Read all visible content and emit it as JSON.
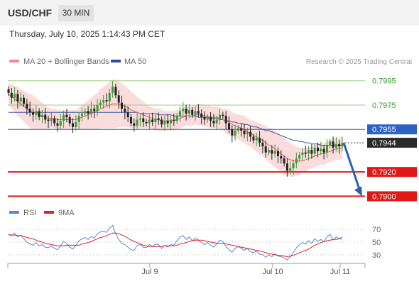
{
  "header": {
    "symbol": "USD/CHF",
    "timeframe": "30 MIN",
    "datetime": "Thursday, July 10, 2025 1:14:43 PM CET"
  },
  "legend": {
    "items": [
      {
        "name": "MA 20 + Bollinger Bands",
        "color": "#f08a8a"
      },
      {
        "name": "MA 50",
        "color": "#2a4f9a"
      }
    ],
    "credit": "Research © 2025 Trading Central"
  },
  "colors": {
    "up": "#3a9a3a",
    "down": "#222222",
    "resistance": "#9bd07a",
    "pivot": "#2a63c4",
    "support": "#e01818",
    "band_fill": "#fbdcdc",
    "ma20": "#e86060",
    "ma50": "#3a5ba0",
    "rsi": "#5b86d6",
    "rsi_ma": "#e02020",
    "arrow": "#2b5fb0"
  },
  "chart_data": [
    {
      "type": "candlestick",
      "ylim": [
        0.7895,
        0.8003
      ],
      "x_ticks": [
        "Jul 9",
        "Jul 10",
        "Jul 11"
      ],
      "levels": [
        {
          "value": 0.7995,
          "label": "0.7995",
          "role": "resistance"
        },
        {
          "value": 0.7975,
          "label": "0.7975",
          "role": "resistance"
        },
        {
          "value": 0.7955,
          "label": "0.7955",
          "role": "pivot"
        },
        {
          "value": 0.7944,
          "label": "0.7944",
          "role": "last"
        },
        {
          "value": 0.792,
          "label": "0.7920",
          "role": "support"
        },
        {
          "value": 0.79,
          "label": "0.7900",
          "role": "support"
        }
      ],
      "close": [
        0.7985,
        0.7981,
        0.7984,
        0.7978,
        0.7981,
        0.7976,
        0.7972,
        0.7969,
        0.7967,
        0.797,
        0.7965,
        0.7967,
        0.7963,
        0.7962,
        0.7964,
        0.796,
        0.7958,
        0.7962,
        0.7967,
        0.7965,
        0.796,
        0.7957,
        0.7961,
        0.7966,
        0.7968,
        0.797,
        0.7968,
        0.7972,
        0.797,
        0.7975,
        0.7977,
        0.7979,
        0.7978,
        0.7985,
        0.799,
        0.7983,
        0.7977,
        0.7972,
        0.7969,
        0.7965,
        0.796,
        0.7958,
        0.7963,
        0.7964,
        0.7961,
        0.796,
        0.7963,
        0.7961,
        0.7964,
        0.7963,
        0.7959,
        0.7962,
        0.796,
        0.7963,
        0.7962,
        0.7966,
        0.797,
        0.7972,
        0.7968,
        0.7971,
        0.7967,
        0.797,
        0.7968,
        0.7965,
        0.7963,
        0.7965,
        0.7962,
        0.796,
        0.7963,
        0.7967,
        0.7966,
        0.796,
        0.7955,
        0.795,
        0.7954,
        0.7956,
        0.7954,
        0.7951,
        0.7953,
        0.7949,
        0.7946,
        0.7948,
        0.7944,
        0.7941,
        0.7936,
        0.7938,
        0.7935,
        0.7937,
        0.7933,
        0.7931,
        0.7927,
        0.7921,
        0.7923,
        0.7927,
        0.7931,
        0.7934,
        0.7936,
        0.7935,
        0.7938,
        0.7935,
        0.794,
        0.7937,
        0.7939,
        0.7936,
        0.7942,
        0.7945,
        0.794,
        0.7943,
        0.7941,
        0.7944
      ],
      "ma20": [
        0.7984,
        0.7982,
        0.798,
        0.7978,
        0.7976,
        0.7974,
        0.7972,
        0.797,
        0.7969,
        0.7968,
        0.7967,
        0.7966,
        0.7965,
        0.7964,
        0.7964,
        0.7964,
        0.7963,
        0.7963,
        0.7963,
        0.7963,
        0.7963,
        0.7963,
        0.7963,
        0.7964,
        0.7965,
        0.7966,
        0.7967,
        0.7968,
        0.7969,
        0.797,
        0.7972,
        0.7973,
        0.7974,
        0.7975,
        0.7976,
        0.7976,
        0.7976,
        0.7975,
        0.7974,
        0.7973,
        0.7971,
        0.797,
        0.7969,
        0.7968,
        0.7967,
        0.7966,
        0.7965,
        0.7964,
        0.7963,
        0.7963,
        0.7962,
        0.7962,
        0.7962,
        0.7962,
        0.7962,
        0.7963,
        0.7964,
        0.7965,
        0.7966,
        0.7966,
        0.7966,
        0.7967,
        0.7967,
        0.7967,
        0.7966,
        0.7966,
        0.7965,
        0.7965,
        0.7965,
        0.7964,
        0.7963,
        0.7962,
        0.7961,
        0.7959,
        0.7958,
        0.7957,
        0.7956,
        0.7955,
        0.7953,
        0.7952,
        0.795,
        0.7949,
        0.7947,
        0.7946,
        0.7944,
        0.7942,
        0.7941,
        0.7939,
        0.7937,
        0.7935,
        0.7933,
        0.7931,
        0.793,
        0.7929,
        0.7929,
        0.7929,
        0.7929,
        0.793,
        0.7931,
        0.7932,
        0.7933,
        0.7934,
        0.7935,
        0.7935,
        0.7936,
        0.7937,
        0.7938,
        0.7939,
        0.7939,
        0.794
      ],
      "ma50": [
        0.7969,
        0.7969,
        0.7969,
        0.7969,
        0.7969,
        0.7969,
        0.7969,
        0.7969,
        0.7969,
        0.7969,
        0.7969,
        0.7969,
        0.7969,
        0.7969,
        0.7969,
        0.7969,
        0.7969,
        0.7969,
        0.7969,
        0.7969,
        0.7969,
        0.7969,
        0.7969,
        0.7969,
        0.7969,
        0.7969,
        0.7969,
        0.7969,
        0.7969,
        0.7969,
        0.7969,
        0.7969,
        0.7969,
        0.7969,
        0.7969,
        0.7969,
        0.7969,
        0.7969,
        0.7969,
        0.7969,
        0.7969,
        0.7969,
        0.7969,
        0.7968,
        0.7968,
        0.7968,
        0.7968,
        0.7968,
        0.7968,
        0.7967,
        0.7967,
        0.7967,
        0.7967,
        0.7967,
        0.7966,
        0.7966,
        0.7966,
        0.7966,
        0.7966,
        0.7966,
        0.7966,
        0.7966,
        0.7965,
        0.7965,
        0.7965,
        0.7965,
        0.7964,
        0.7964,
        0.7964,
        0.7963,
        0.7963,
        0.7962,
        0.7962,
        0.7961,
        0.7961,
        0.796,
        0.796,
        0.7959,
        0.7959,
        0.7958,
        0.7957,
        0.7957,
        0.7956,
        0.7955,
        0.7954,
        0.7954,
        0.7953,
        0.7952,
        0.7951,
        0.795,
        0.7949,
        0.7948,
        0.7947,
        0.7946,
        0.7946,
        0.7945,
        0.7945,
        0.7944,
        0.7944,
        0.7943,
        0.7943,
        0.7943,
        0.7942,
        0.7942,
        0.7942,
        0.7942,
        0.7942,
        0.7942,
        0.7942,
        0.7942
      ],
      "band_width": [
        0.0009,
        0.001,
        0.0011,
        0.0012,
        0.0012,
        0.0013,
        0.0013,
        0.0014,
        0.0014,
        0.0013,
        0.0012,
        0.0011,
        0.001,
        0.0009,
        0.0008,
        0.0008,
        0.0008,
        0.0008,
        0.0008,
        0.0008,
        0.0008,
        0.0008,
        0.0008,
        0.0009,
        0.001,
        0.0011,
        0.0012,
        0.0013,
        0.0014,
        0.0015,
        0.0016,
        0.0017,
        0.0018,
        0.0019,
        0.002,
        0.002,
        0.0019,
        0.0018,
        0.0017,
        0.0016,
        0.0015,
        0.0014,
        0.0013,
        0.0012,
        0.0011,
        0.001,
        0.0009,
        0.0009,
        0.0009,
        0.0009,
        0.0009,
        0.0008,
        0.0008,
        0.0008,
        0.0008,
        0.0008,
        0.0008,
        0.0008,
        0.0008,
        0.0008,
        0.0008,
        0.0008,
        0.0009,
        0.0009,
        0.0009,
        0.0009,
        0.0009,
        0.0009,
        0.0009,
        0.0009,
        0.0009,
        0.001,
        0.001,
        0.001,
        0.001,
        0.001,
        0.0011,
        0.0011,
        0.0011,
        0.0011,
        0.0012,
        0.0012,
        0.0013,
        0.0013,
        0.0014,
        0.0014,
        0.0015,
        0.0015,
        0.0015,
        0.0015,
        0.0015,
        0.0014,
        0.0014,
        0.0013,
        0.0012,
        0.0011,
        0.001,
        0.001,
        0.0009,
        0.0009,
        0.0009,
        0.0009,
        0.0009,
        0.0009,
        0.0009,
        0.0009,
        0.0009,
        0.0009,
        0.0009,
        0.0009
      ],
      "projection": {
        "from": 0.7944,
        "to": 0.79
      }
    },
    {
      "type": "line",
      "title": "RSI",
      "legend": [
        "RSI",
        "9MA"
      ],
      "ylim": [
        22,
        80
      ],
      "y_ticks": [
        70,
        50,
        30
      ],
      "rsi": [
        63,
        60,
        64,
        58,
        61,
        55,
        50,
        47,
        45,
        49,
        44,
        46,
        42,
        41,
        44,
        40,
        38,
        44,
        51,
        48,
        42,
        39,
        45,
        52,
        55,
        57,
        54,
        59,
        56,
        63,
        66,
        67,
        65,
        72,
        76,
        63,
        54,
        48,
        46,
        42,
        38,
        37,
        45,
        46,
        42,
        41,
        46,
        43,
        47,
        46,
        40,
        45,
        42,
        46,
        45,
        52,
        58,
        60,
        54,
        58,
        52,
        56,
        53,
        49,
        46,
        49,
        45,
        42,
        47,
        53,
        51,
        43,
        38,
        34,
        40,
        43,
        40,
        37,
        40,
        35,
        33,
        36,
        31,
        30,
        26,
        30,
        27,
        31,
        28,
        27,
        25,
        22,
        27,
        33,
        41,
        46,
        49,
        47,
        52,
        48,
        55,
        51,
        54,
        50,
        58,
        62,
        53,
        58,
        55,
        58
      ],
      "ma9": [
        61,
        61,
        61,
        60,
        60,
        59,
        57,
        56,
        55,
        53,
        51,
        50,
        48,
        47,
        46,
        45,
        44,
        44,
        44,
        45,
        45,
        45,
        45,
        45,
        47,
        48,
        49,
        51,
        53,
        55,
        57,
        58,
        60,
        62,
        64,
        64,
        63,
        61,
        59,
        56,
        53,
        51,
        49,
        47,
        45,
        44,
        43,
        43,
        43,
        43,
        43,
        44,
        44,
        44,
        44,
        45,
        47,
        48,
        49,
        51,
        52,
        53,
        53,
        53,
        52,
        51,
        50,
        49,
        48,
        48,
        48,
        47,
        46,
        45,
        44,
        43,
        42,
        41,
        40,
        39,
        38,
        37,
        36,
        35,
        33,
        32,
        31,
        30,
        29,
        29,
        28,
        27,
        28,
        29,
        31,
        33,
        35,
        37,
        39,
        42,
        45,
        47,
        49,
        51,
        52,
        53,
        54,
        54,
        55,
        55
      ]
    }
  ]
}
